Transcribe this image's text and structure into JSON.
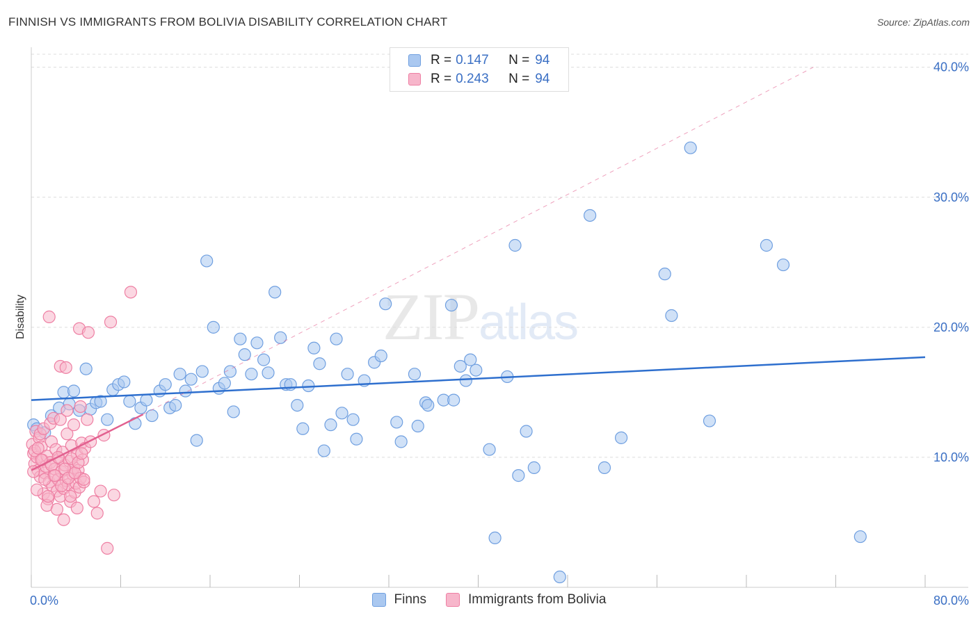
{
  "header": {
    "title": "FINNISH VS IMMIGRANTS FROM BOLIVIA DISABILITY CORRELATION CHART",
    "source": "Source: ZipAtlas.com"
  },
  "watermark": {
    "zip": "ZIP",
    "atlas": "atlas"
  },
  "legend": {
    "rows": [
      {
        "r_label": "R =",
        "r_value": "0.147",
        "n_label": "N =",
        "n_value": "94"
      },
      {
        "r_label": "R =",
        "r_value": "0.243",
        "n_label": "N =",
        "n_value": "94"
      }
    ]
  },
  "bottom_legend": {
    "finns": "Finns",
    "bolivia": "Immigrants from Bolivia"
  },
  "colors": {
    "finns_fill": "#aac8f0",
    "finns_stroke": "#6f9fe0",
    "finns_line": "#2e6fce",
    "bolivia_fill": "#f7b6cb",
    "bolivia_stroke": "#ee7fa3",
    "bolivia_line": "#e2608f",
    "tick_label": "#3a6fc4",
    "grid": "#dcdcdc"
  },
  "chart_data": {
    "type": "scatter",
    "title": "FINNISH VS IMMIGRANTS FROM BOLIVIA DISABILITY CORRELATION CHART",
    "xlabel": "",
    "ylabel": "Disability",
    "xlim": [
      0,
      80
    ],
    "ylim": [
      0,
      41
    ],
    "x_tick_labels": [
      {
        "value": 0,
        "label": "0.0%"
      },
      {
        "value": 80,
        "label": "80.0%"
      }
    ],
    "y_tick_labels": [
      {
        "value": 10,
        "label": "10.0%"
      },
      {
        "value": 20,
        "label": "20.0%"
      },
      {
        "value": 30,
        "label": "30.0%"
      },
      {
        "value": 40,
        "label": "40.0%"
      }
    ],
    "grid": true,
    "legend_position": "top-center",
    "series": [
      {
        "name": "Finns",
        "points": [
          [
            0.2,
            12.5
          ],
          [
            0.5,
            12.2
          ],
          [
            1.2,
            11.9
          ],
          [
            1.8,
            13.2
          ],
          [
            2.5,
            13.8
          ],
          [
            2.9,
            15.0
          ],
          [
            3.4,
            14.1
          ],
          [
            3.8,
            15.1
          ],
          [
            4.3,
            13.6
          ],
          [
            4.9,
            16.8
          ],
          [
            5.3,
            13.7
          ],
          [
            5.8,
            14.2
          ],
          [
            6.2,
            14.3
          ],
          [
            6.8,
            12.9
          ],
          [
            7.3,
            15.2
          ],
          [
            7.8,
            15.6
          ],
          [
            8.3,
            15.8
          ],
          [
            8.8,
            14.3
          ],
          [
            9.3,
            12.6
          ],
          [
            9.8,
            13.8
          ],
          [
            10.3,
            14.4
          ],
          [
            10.8,
            13.2
          ],
          [
            11.5,
            15.1
          ],
          [
            12.0,
            15.6
          ],
          [
            12.4,
            13.8
          ],
          [
            12.9,
            14.0
          ],
          [
            13.3,
            16.4
          ],
          [
            13.8,
            15.1
          ],
          [
            14.3,
            16.0
          ],
          [
            14.8,
            11.3
          ],
          [
            15.3,
            16.6
          ],
          [
            15.7,
            25.1
          ],
          [
            16.3,
            20.0
          ],
          [
            16.8,
            15.3
          ],
          [
            17.3,
            15.7
          ],
          [
            17.8,
            16.6
          ],
          [
            18.1,
            13.5
          ],
          [
            18.7,
            19.1
          ],
          [
            19.1,
            17.9
          ],
          [
            19.7,
            16.4
          ],
          [
            20.2,
            18.8
          ],
          [
            20.8,
            17.5
          ],
          [
            21.2,
            16.5
          ],
          [
            21.8,
            22.7
          ],
          [
            22.3,
            19.2
          ],
          [
            22.8,
            15.6
          ],
          [
            23.2,
            15.6
          ],
          [
            23.8,
            14.0
          ],
          [
            24.3,
            12.2
          ],
          [
            24.8,
            15.5
          ],
          [
            25.3,
            18.4
          ],
          [
            25.8,
            17.2
          ],
          [
            26.2,
            10.5
          ],
          [
            26.8,
            12.5
          ],
          [
            27.3,
            19.1
          ],
          [
            27.8,
            13.4
          ],
          [
            28.3,
            16.4
          ],
          [
            28.8,
            12.9
          ],
          [
            29.1,
            11.4
          ],
          [
            29.8,
            15.9
          ],
          [
            30.7,
            17.3
          ],
          [
            31.3,
            17.8
          ],
          [
            31.7,
            21.8
          ],
          [
            32.7,
            12.7
          ],
          [
            33.1,
            11.2
          ],
          [
            34.3,
            16.4
          ],
          [
            34.6,
            12.4
          ],
          [
            35.3,
            14.2
          ],
          [
            35.5,
            14.0
          ],
          [
            36.9,
            14.4
          ],
          [
            37.6,
            21.7
          ],
          [
            37.8,
            14.4
          ],
          [
            38.4,
            17.0
          ],
          [
            38.9,
            15.9
          ],
          [
            39.3,
            17.5
          ],
          [
            39.8,
            16.7
          ],
          [
            41.0,
            10.6
          ],
          [
            41.5,
            3.8
          ],
          [
            42.6,
            16.2
          ],
          [
            43.3,
            26.3
          ],
          [
            43.6,
            8.6
          ],
          [
            44.3,
            12.0
          ],
          [
            45.0,
            9.2
          ],
          [
            47.3,
            0.8
          ],
          [
            50.0,
            28.6
          ],
          [
            51.3,
            9.2
          ],
          [
            52.8,
            11.5
          ],
          [
            56.7,
            24.1
          ],
          [
            57.3,
            20.9
          ],
          [
            59.0,
            33.8
          ],
          [
            60.7,
            12.8
          ],
          [
            65.8,
            26.3
          ],
          [
            67.3,
            24.8
          ],
          [
            74.2,
            3.9
          ]
        ]
      },
      {
        "name": "Immigrants from Bolivia",
        "points": [
          [
            0.1,
            11.0
          ],
          [
            0.2,
            10.3
          ],
          [
            0.3,
            9.5
          ],
          [
            0.4,
            12.0
          ],
          [
            0.5,
            10.0
          ],
          [
            0.6,
            9.0
          ],
          [
            0.7,
            11.5
          ],
          [
            0.8,
            8.5
          ],
          [
            0.9,
            10.8
          ],
          [
            1.0,
            9.8
          ],
          [
            1.1,
            7.2
          ],
          [
            1.2,
            8.8
          ],
          [
            1.3,
            9.3
          ],
          [
            1.4,
            10.1
          ],
          [
            1.5,
            6.8
          ],
          [
            1.6,
            8.1
          ],
          [
            1.7,
            9.6
          ],
          [
            1.8,
            11.2
          ],
          [
            1.9,
            7.8
          ],
          [
            2.0,
            8.6
          ],
          [
            2.1,
            9.1
          ],
          [
            2.2,
            10.6
          ],
          [
            2.3,
            7.4
          ],
          [
            2.4,
            8.3
          ],
          [
            2.5,
            9.9
          ],
          [
            2.6,
            7.0
          ],
          [
            2.7,
            8.9
          ],
          [
            2.8,
            10.4
          ],
          [
            2.9,
            7.6
          ],
          [
            3.0,
            9.4
          ],
          [
            3.1,
            8.2
          ],
          [
            3.2,
            11.8
          ],
          [
            3.3,
            7.9
          ],
          [
            3.4,
            9.7
          ],
          [
            3.5,
            6.6
          ],
          [
            3.6,
            10.9
          ],
          [
            3.7,
            8.7
          ],
          [
            3.8,
            9.2
          ],
          [
            3.9,
            7.3
          ],
          [
            4.0,
            8.0
          ],
          [
            4.1,
            10.2
          ],
          [
            4.2,
            9.0
          ],
          [
            4.3,
            7.7
          ],
          [
            4.4,
            8.4
          ],
          [
            4.5,
            11.1
          ],
          [
            4.6,
            9.8
          ],
          [
            4.7,
            8.1
          ],
          [
            4.8,
            10.7
          ],
          [
            0.2,
            8.9
          ],
          [
            0.5,
            7.5
          ],
          [
            0.8,
            11.8
          ],
          [
            1.1,
            12.2
          ],
          [
            1.4,
            6.3
          ],
          [
            1.7,
            12.6
          ],
          [
            2.0,
            13.0
          ],
          [
            2.3,
            6.0
          ],
          [
            2.6,
            12.9
          ],
          [
            2.9,
            5.2
          ],
          [
            3.2,
            13.6
          ],
          [
            3.5,
            7.0
          ],
          [
            3.8,
            12.5
          ],
          [
            4.1,
            6.1
          ],
          [
            4.4,
            13.9
          ],
          [
            4.7,
            8.3
          ],
          [
            5.0,
            12.9
          ],
          [
            5.3,
            11.2
          ],
          [
            5.6,
            6.6
          ],
          [
            5.9,
            5.7
          ],
          [
            6.2,
            7.4
          ],
          [
            6.5,
            11.7
          ],
          [
            6.8,
            3.0
          ],
          [
            7.1,
            20.4
          ],
          [
            7.4,
            7.1
          ],
          [
            8.9,
            22.7
          ],
          [
            1.6,
            20.8
          ],
          [
            4.3,
            19.9
          ],
          [
            5.1,
            19.6
          ],
          [
            2.6,
            17.0
          ],
          [
            3.1,
            16.9
          ],
          [
            0.3,
            10.5
          ],
          [
            0.6,
            10.7
          ],
          [
            0.9,
            9.8
          ],
          [
            1.2,
            8.3
          ],
          [
            1.5,
            7.0
          ],
          [
            1.8,
            9.4
          ],
          [
            2.1,
            8.6
          ],
          [
            2.4,
            10.0
          ],
          [
            2.7,
            7.8
          ],
          [
            3.0,
            9.1
          ],
          [
            3.3,
            8.4
          ],
          [
            3.6,
            9.9
          ],
          [
            3.9,
            8.8
          ],
          [
            4.2,
            9.6
          ],
          [
            4.5,
            10.3
          ]
        ]
      }
    ],
    "trend_lines": [
      {
        "series": "Finns",
        "from": [
          0,
          14.4
        ],
        "to": [
          80,
          17.7
        ],
        "style": "solid"
      },
      {
        "series": "Immigrants from Bolivia",
        "from": [
          0,
          9.0
        ],
        "to": [
          10,
          13.3
        ],
        "style": "solid"
      },
      {
        "series": "Immigrants from Bolivia",
        "from": [
          10,
          13.3
        ],
        "to": [
          70,
          40.0
        ],
        "style": "dashed"
      }
    ]
  }
}
